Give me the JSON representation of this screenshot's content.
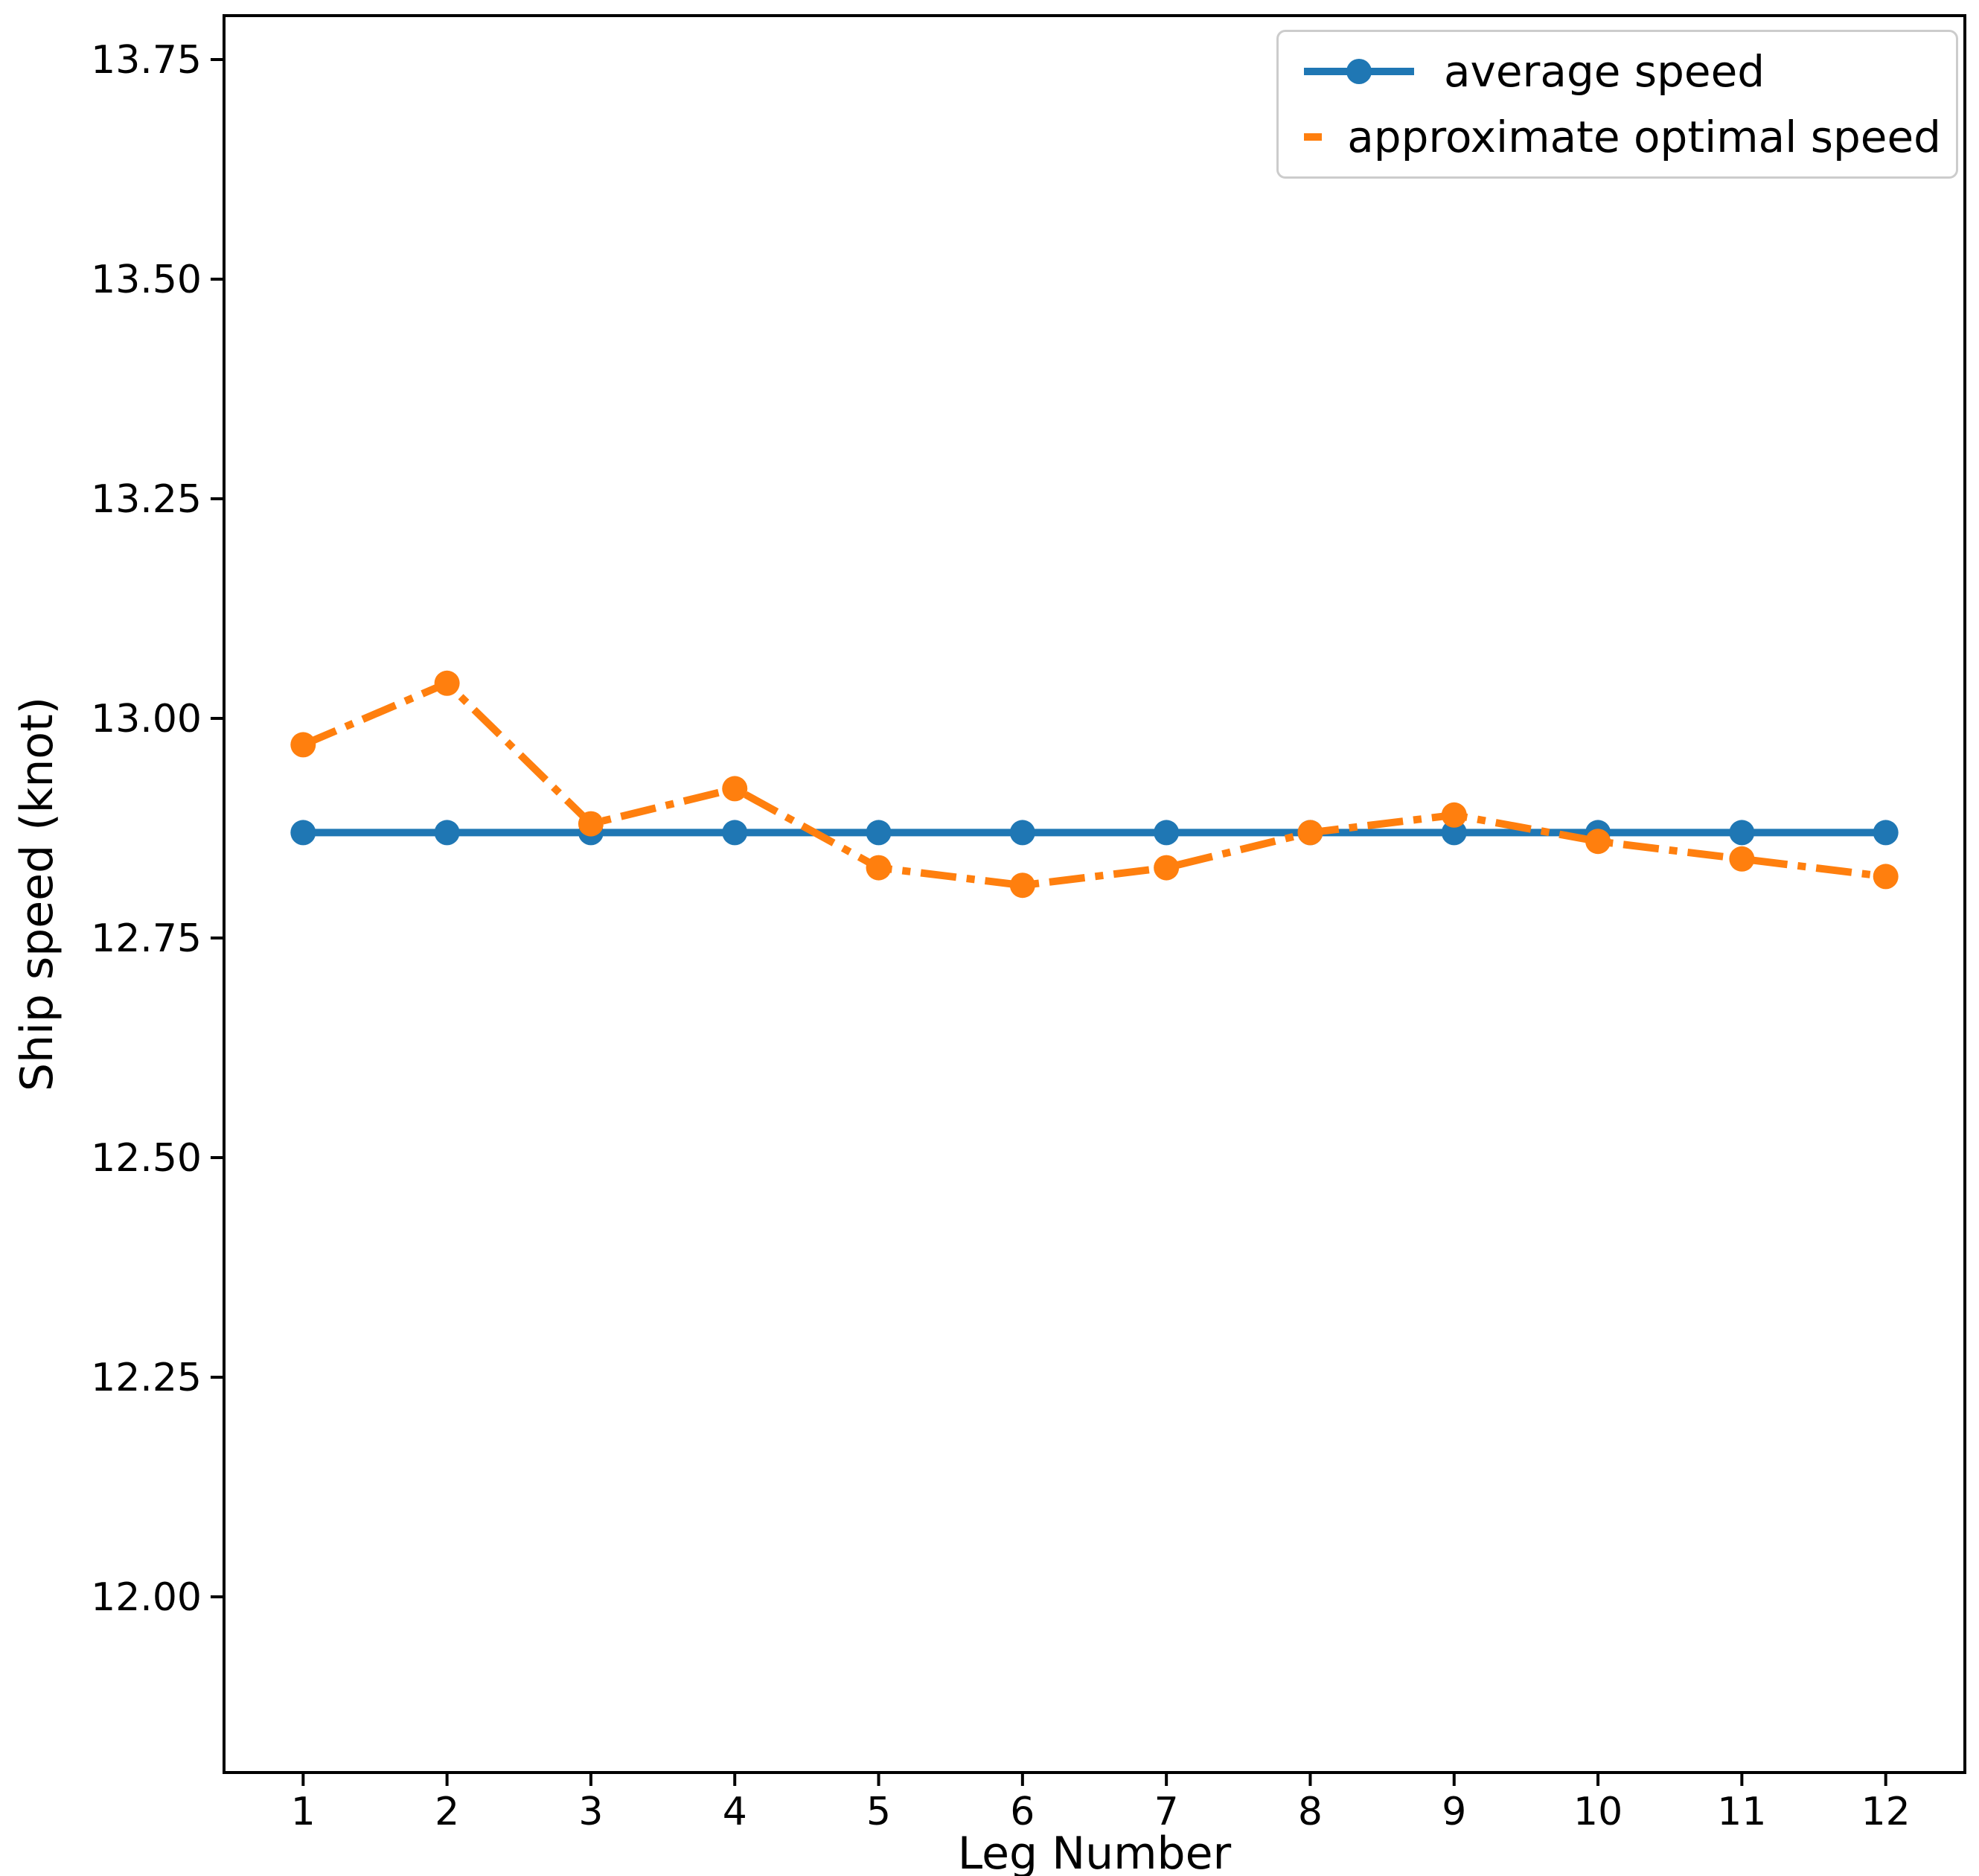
{
  "figure": {
    "background": "#ffffff",
    "text_color": "#000000",
    "spine_color": "#000000"
  },
  "chart_data": {
    "type": "line",
    "title": "",
    "xlabel": "Leg Number",
    "ylabel": "Ship speed (knot)",
    "x": [
      1,
      2,
      3,
      4,
      5,
      6,
      7,
      8,
      9,
      10,
      11,
      12
    ],
    "xtick_labels": [
      "1",
      "2",
      "3",
      "4",
      "5",
      "6",
      "7",
      "8",
      "9",
      "10",
      "11",
      "12"
    ],
    "ytick_values": [
      13.75,
      13.5,
      13.25,
      13.0,
      12.75,
      12.5,
      12.25,
      12.0
    ],
    "ytick_labels": [
      "13.75",
      "13.50",
      "13.25",
      "13.00",
      "12.75",
      "12.50",
      "12.25",
      "12.00"
    ],
    "xlim": [
      0.45,
      12.55
    ],
    "ylim": [
      11.8,
      13.8
    ],
    "grid": false,
    "legend_position": "upper right",
    "series": [
      {
        "name": "average speed",
        "color": "#1f77b4",
        "line_style": "solid",
        "marker": "circle",
        "values": [
          12.87,
          12.87,
          12.87,
          12.87,
          12.87,
          12.87,
          12.87,
          12.87,
          12.87,
          12.87,
          12.87,
          12.87
        ]
      },
      {
        "name": "approximate optimal speed",
        "color": "#ff7f0e",
        "line_style": "dashdot",
        "marker": "circle",
        "values": [
          12.97,
          13.04,
          12.88,
          12.92,
          12.83,
          12.81,
          12.83,
          12.87,
          12.89,
          12.86,
          12.84,
          12.82
        ]
      }
    ]
  }
}
